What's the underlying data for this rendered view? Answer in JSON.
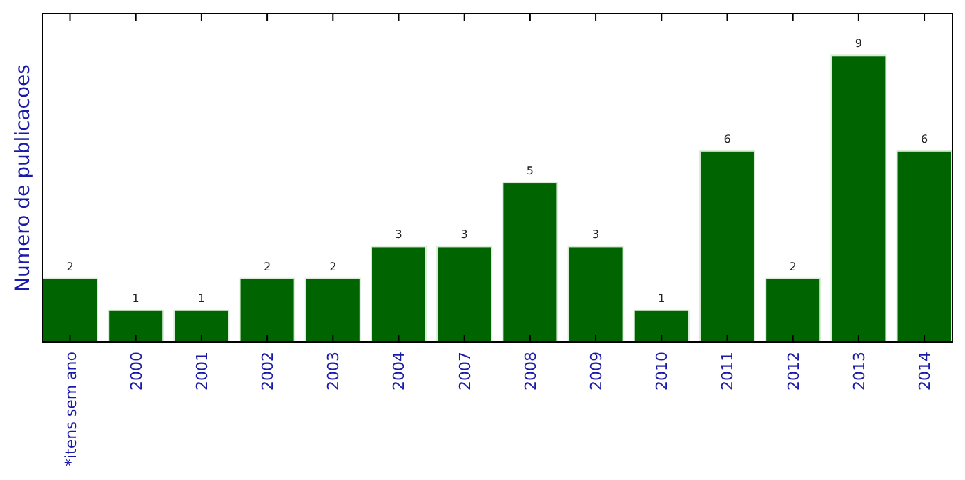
{
  "chart_data": {
    "type": "bar",
    "ylabel": "Numero de publicacoes",
    "categories": [
      "*itens sem ano",
      "2000",
      "2001",
      "2002",
      "2003",
      "2004",
      "2007",
      "2008",
      "2009",
      "2010",
      "2011",
      "2012",
      "2013",
      "2014"
    ],
    "values": [
      2,
      1,
      1,
      2,
      2,
      3,
      3,
      5,
      3,
      1,
      6,
      2,
      9,
      6
    ],
    "color": "#006400",
    "data_labels": true
  }
}
